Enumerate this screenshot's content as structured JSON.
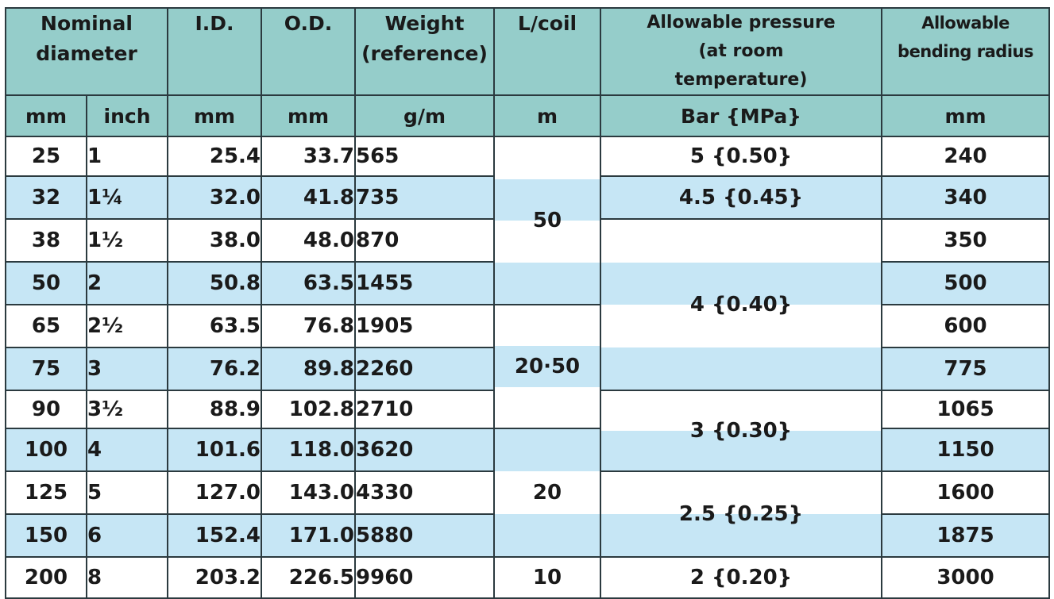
{
  "headers": {
    "nominal": "Nominal diameter",
    "id": "I.D.",
    "od": "O.D.",
    "weight": "Weight (reference)",
    "lcoil": "L/coil",
    "pressure": "Allowable pressure (at room temperature)",
    "bending": "Allowable bending radius"
  },
  "units": {
    "mm": "mm",
    "inch": "inch",
    "id": "mm",
    "od": "mm",
    "weight": "g/m",
    "lcoil": "m",
    "pressure": "Bar {MPa}",
    "bending": "mm"
  },
  "rows": [
    {
      "mm": "25",
      "inch": "1",
      "id": "25.4",
      "od": "33.7",
      "weight": "565",
      "bend": "240"
    },
    {
      "mm": "32",
      "inch": "1¼",
      "id": "32.0",
      "od": "41.8",
      "weight": "735",
      "bend": "340"
    },
    {
      "mm": "38",
      "inch": "1½",
      "id": "38.0",
      "od": "48.0",
      "weight": "870",
      "bend": "350"
    },
    {
      "mm": "50",
      "inch": "2",
      "id": "50.8",
      "od": "63.5",
      "weight": "1455",
      "bend": "500"
    },
    {
      "mm": "65",
      "inch": "2½",
      "id": "63.5",
      "od": "76.8",
      "weight": "1905",
      "bend": "600"
    },
    {
      "mm": "75",
      "inch": "3",
      "id": "76.2",
      "od": "89.8",
      "weight": "2260",
      "bend": "775"
    },
    {
      "mm": "90",
      "inch": "3½",
      "id": "88.9",
      "od": "102.8",
      "weight": "2710",
      "bend": "1065"
    },
    {
      "mm": "100",
      "inch": "4",
      "id": "101.6",
      "od": "118.0",
      "weight": "3620",
      "bend": "1150"
    },
    {
      "mm": "125",
      "inch": "5",
      "id": "127.0",
      "od": "143.0",
      "weight": "4330",
      "bend": "1600"
    },
    {
      "mm": "150",
      "inch": "6",
      "id": "152.4",
      "od": "171.0",
      "weight": "5880",
      "bend": "1875"
    },
    {
      "mm": "200",
      "inch": "8",
      "id": "203.2",
      "od": "226.5",
      "weight": "9960",
      "bend": "3000"
    }
  ],
  "lcoil_groups": [
    "50",
    "20·50",
    "20",
    "10"
  ],
  "pressure_groups": [
    "5 {0.50}",
    "4.5 {0.45}",
    "4 {0.40}",
    "3 {0.30}",
    "2.5 {0.25}",
    "2 {0.20}"
  ],
  "colors": {
    "header": "#95cdca",
    "stripe": "#c6e6f5",
    "border": "#2b3a3f"
  }
}
